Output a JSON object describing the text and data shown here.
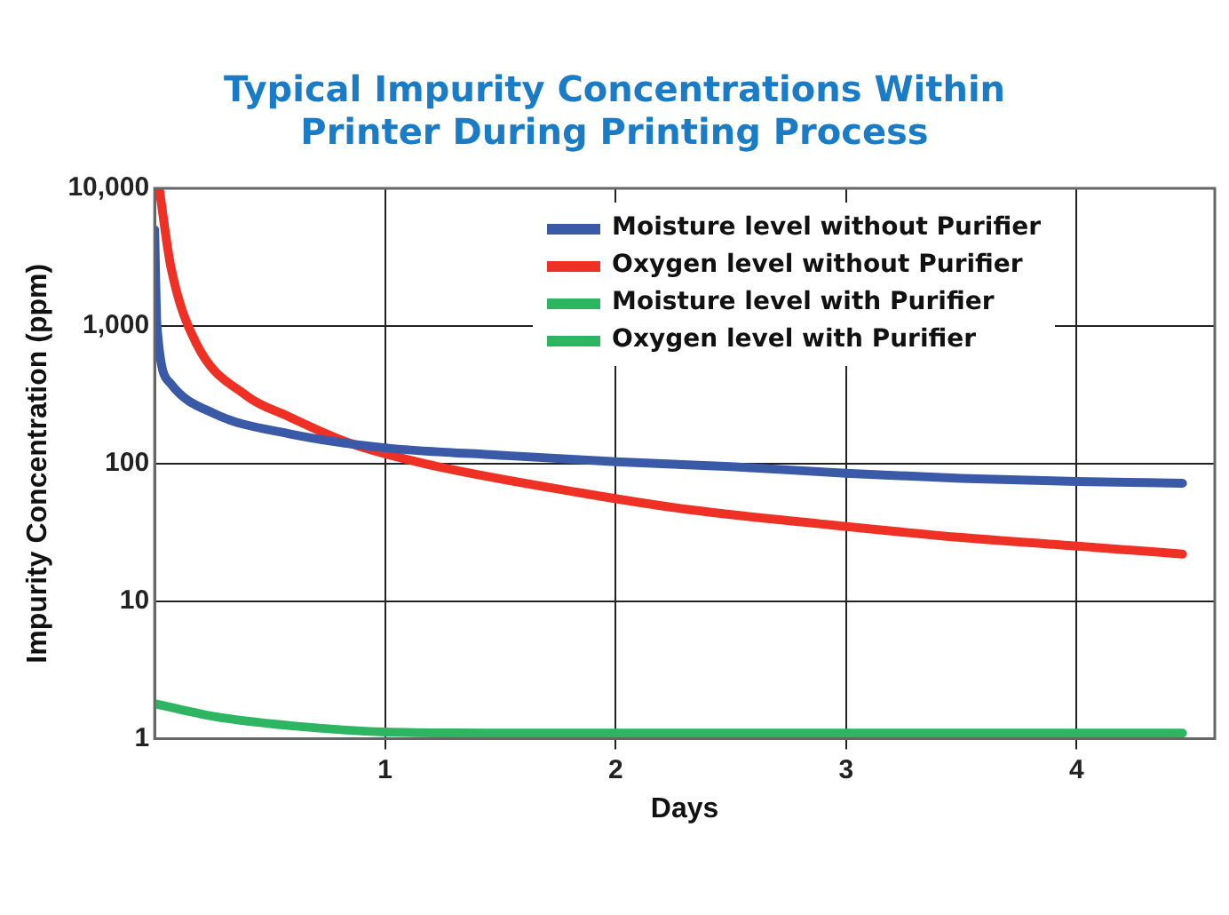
{
  "chart_data": {
    "type": "line",
    "title": "Typical Impurity Concentrations Within Printer During Printing Process",
    "xlabel": "Days",
    "ylabel": "Impurity Concentration (ppm)",
    "log": "y",
    "grid": true,
    "legend": "top right",
    "marker": "none",
    "line_style": "solid",
    "xlim": [
      0,
      4.6
    ],
    "xticks": [
      1,
      2,
      3,
      4
    ],
    "ylim": [
      1,
      10000
    ],
    "yticks": [
      1,
      10,
      100,
      {
        "value": 1000,
        "label": "1,000"
      },
      {
        "value": 10000,
        "label": "10,000"
      }
    ],
    "series": [
      {
        "name": "Moisture level without Purifier",
        "color": "#3a5aa8",
        "x": [
          0,
          0.01,
          0.07,
          0.26,
          0.58,
          1,
          1.5,
          2,
          2.5,
          3,
          3.5,
          4,
          4.46
        ],
        "values": [
          5000,
          1000,
          380,
          230,
          165,
          130,
          115,
          103,
          95,
          85,
          78,
          74,
          72
        ]
      },
      {
        "name": "Oxygen level without Purifier",
        "color": "#ee3124",
        "x": [
          0.02,
          0.07,
          0.18,
          0.4,
          0.58,
          0.84,
          1.17,
          1.83,
          2.33,
          2.92,
          3.5,
          4.09,
          4.46
        ],
        "values": [
          10000,
          2700,
          750,
          310,
          220,
          142,
          100,
          62,
          46,
          36,
          29,
          24.5,
          22
        ]
      },
      {
        "name": "Moisture level with Purifier",
        "color": "#2db562",
        "x": [
          0,
          0.26,
          0.6,
          1,
          1.5,
          2,
          3,
          4,
          4.46
        ],
        "values": [
          1.8,
          1.45,
          1.24,
          1.12,
          1.1,
          1.1,
          1.1,
          1.1,
          1.1
        ]
      },
      {
        "name": "Oxygen level with Purifier",
        "color": "#2db562"
      }
    ]
  }
}
